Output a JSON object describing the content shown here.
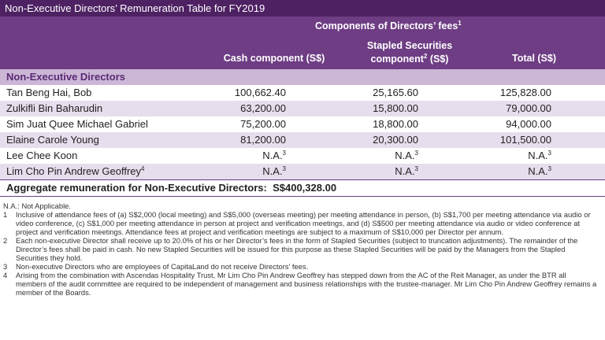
{
  "title": "Non-Executive Directors’ Remuneration Table for FY2019",
  "table": {
    "group_header": {
      "text": "Components of Directors’ fees",
      "sup": "1"
    },
    "columns": [
      {
        "text": "Cash component (S$)"
      },
      {
        "lines": [
          "Stapled Securities",
          "component"
        ],
        "sup": "2",
        "after": "(S$)"
      },
      {
        "text": "Total (S$)"
      }
    ],
    "section": "Non-Executive Directors",
    "rows": [
      {
        "name": "Tan Beng Hai, Bob",
        "cells": [
          "100,662.40",
          "25,165.60",
          "125,828.00"
        ]
      },
      {
        "name": "Zulkifli Bin Baharudin",
        "cells": [
          "63,200.00",
          "15,800.00",
          "79,000.00"
        ]
      },
      {
        "name": "Sim Juat Quee Michael Gabriel",
        "cells": [
          "75,200.00",
          "18,800.00",
          "94,000.00"
        ]
      },
      {
        "name": "Elaine Carole Young",
        "cells": [
          "81,200.00",
          "20,300.00",
          "101,500.00"
        ]
      },
      {
        "name": "Lee Chee Koon",
        "cells": [
          {
            "text": "N.A.",
            "sup": "3"
          },
          {
            "text": "N.A.",
            "sup": "3"
          },
          {
            "text": "N.A.",
            "sup": "3"
          }
        ]
      },
      {
        "name": "Lim Cho Pin Andrew Geoffrey",
        "name_sup": "4",
        "cells": [
          {
            "text": "N.A.",
            "sup": "3"
          },
          {
            "text": "N.A.",
            "sup": "3"
          },
          {
            "text": "N.A.",
            "sup": "3"
          }
        ]
      }
    ],
    "aggregate": {
      "label": "Aggregate remuneration for Non-Executive Directors:",
      "value": "S$400,328.00"
    }
  },
  "footnotes": {
    "abbreviation": "N.A.: Not Applicable.",
    "notes": [
      {
        "marker": "1",
        "text": "Inclusive of attendance fees of (a) S$2,000 (local meeting) and S$5,000 (overseas meeting) per meeting attendance in person, (b) S$1,700 per meeting attendance via audio or video conference, (c) S$1,000 per meeting attendance in person at project and verification meetings, and (d) S$500 per meeting attendance via audio or video conference at project and verification meetings. Attendance fees at project and verification meetings are subject to a maximum of S$10,000 per Director per annum."
      },
      {
        "marker": "2",
        "text": "Each non-executive Director shall receive up to 20.0% of his or her Director’s fees in the form of Stapled Securities (subject to truncation adjustments). The remainder of the Director’s fees shall be paid in cash. No new Stapled Securities will be issued for this purpose as these Stapled Securities will be paid by the Managers from the Stapled Securities they hold."
      },
      {
        "marker": "3",
        "text": "Non-executive Directors who are employees of CapitaLand do not receive Directors’ fees."
      },
      {
        "marker": "4",
        "text": "Arising from the combination with Ascendas Hospitality Trust, Mr Lim Cho Pin Andrew Geoffrey has stepped down from the AC of the Reit Manager, as under the BTR all members of the audit committee are required to be independent of management and business relationships with the trustee-manager. Mr Lim Cho Pin Andrew Geoffrey remains a member of the Boards."
      }
    ]
  }
}
